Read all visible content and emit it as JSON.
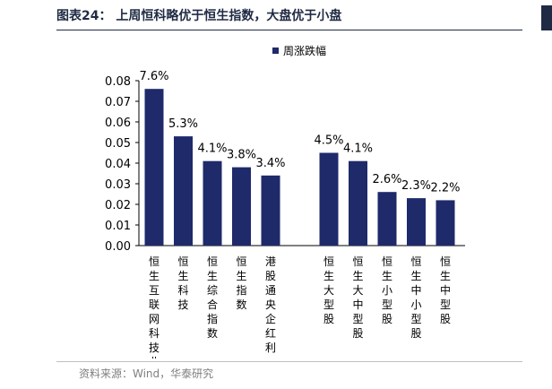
{
  "figure": {
    "title": "图表24：  上周恒科略优于恒生指数，大盘优于小盘",
    "source": "资料来源：Wind，华泰研究"
  },
  "colors": {
    "bar": "#1f2a6b",
    "axis": "#000000",
    "title": "#1f2a44"
  },
  "chart_data": {
    "type": "bar",
    "title": "",
    "xlabel": "",
    "ylabel": "",
    "ylim": [
      0,
      0.08
    ],
    "yticks": [
      "0.08",
      "0.07",
      "0.06",
      "0.05",
      "0.04",
      "0.03",
      "0.02",
      "0.01",
      "0.00"
    ],
    "grid": false,
    "legend_position": "top",
    "series": [
      {
        "name": "周涨跌幅",
        "categories": [
          "恒生互联网科技业",
          "恒生科技",
          "恒生综合指数",
          "恒生指数",
          "港股通央企红利",
          "",
          "恒生大型股",
          "恒生大中型股",
          "恒生小型股",
          "恒生中小型股",
          "恒生中型股"
        ],
        "values": [
          0.076,
          0.053,
          0.041,
          0.038,
          0.034,
          null,
          0.045,
          0.041,
          0.026,
          0.023,
          0.022
        ],
        "data_labels": [
          "7.6%",
          "5.3%",
          "4.1%",
          "3.8%",
          "3.4%",
          "",
          "4.5%",
          "4.1%",
          "2.6%",
          "2.3%",
          "2.2%"
        ]
      }
    ]
  }
}
